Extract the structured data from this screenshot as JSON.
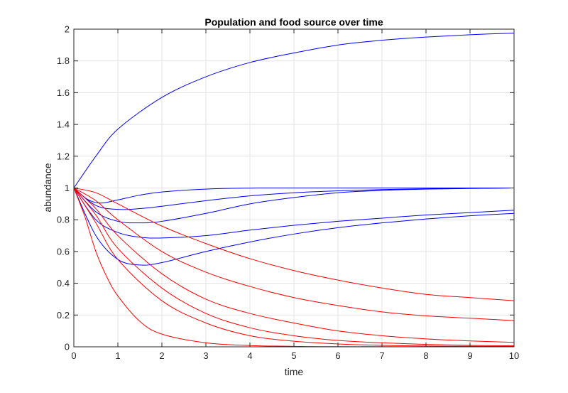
{
  "chart_data": {
    "type": "line",
    "title": "Population and food source over time",
    "xlabel": "time",
    "ylabel": "abundance",
    "xlim": [
      0,
      10
    ],
    "ylim": [
      0,
      2
    ],
    "xticks": [
      "0",
      "1",
      "2",
      "3",
      "4",
      "5",
      "6",
      "7",
      "8",
      "9",
      "10"
    ],
    "yticks": [
      "0",
      "0.2",
      "0.4",
      "0.6",
      "0.8",
      "1",
      "1.2",
      "1.4",
      "1.6",
      "1.8",
      "2"
    ],
    "grid": true,
    "colors": {
      "population": "#0000ff",
      "food": "#ff0000"
    },
    "series": [
      {
        "color": "#0000ff",
        "x": [
          0,
          0.5,
          1,
          2,
          3,
          4,
          5,
          6,
          7,
          8,
          9,
          10
        ],
        "y": [
          1,
          1.2,
          1.37,
          1.57,
          1.7,
          1.79,
          1.85,
          1.9,
          1.93,
          1.95,
          1.965,
          1.975
        ]
      },
      {
        "color": "#0000ff",
        "x": [
          0,
          0.3,
          0.6,
          1,
          1.5,
          2,
          3,
          4,
          5,
          10
        ],
        "y": [
          1,
          0.93,
          0.905,
          0.925,
          0.955,
          0.975,
          0.993,
          0.999,
          1,
          1
        ]
      },
      {
        "color": "#0000ff",
        "x": [
          0,
          0.5,
          1,
          1.5,
          2,
          3,
          4,
          5,
          6,
          7,
          8,
          10
        ],
        "y": [
          1,
          0.89,
          0.865,
          0.87,
          0.885,
          0.92,
          0.95,
          0.97,
          0.982,
          0.99,
          0.995,
          1
        ]
      },
      {
        "color": "#0000ff",
        "x": [
          0,
          0.5,
          1,
          1.5,
          2,
          3,
          4,
          5,
          6,
          7,
          8,
          10
        ],
        "y": [
          1,
          0.85,
          0.79,
          0.78,
          0.79,
          0.84,
          0.9,
          0.94,
          0.97,
          0.985,
          0.993,
          1
        ]
      },
      {
        "color": "#0000ff",
        "x": [
          0,
          0.5,
          1,
          1.5,
          2,
          3,
          4,
          5,
          6,
          7,
          8,
          9,
          10
        ],
        "y": [
          1,
          0.8,
          0.72,
          0.69,
          0.685,
          0.7,
          0.735,
          0.765,
          0.79,
          0.81,
          0.83,
          0.845,
          0.86
        ]
      },
      {
        "color": "#0000ff",
        "x": [
          0,
          0.5,
          1,
          1.5,
          2,
          3,
          4,
          5,
          6,
          7,
          8,
          9,
          10
        ],
        "y": [
          1,
          0.7,
          0.55,
          0.515,
          0.53,
          0.6,
          0.66,
          0.71,
          0.75,
          0.78,
          0.805,
          0.825,
          0.84
        ]
      },
      {
        "color": "#ff0000",
        "x": [
          0,
          0.5,
          1,
          2,
          3,
          4,
          5,
          6,
          7,
          8,
          9,
          10
        ],
        "y": [
          1,
          0.97,
          0.9,
          0.76,
          0.65,
          0.555,
          0.48,
          0.42,
          0.37,
          0.33,
          0.31,
          0.29
        ]
      },
      {
        "color": "#ff0000",
        "x": [
          0,
          0.5,
          1,
          2,
          3,
          4,
          5,
          6,
          7,
          8,
          9,
          10
        ],
        "y": [
          1,
          0.92,
          0.8,
          0.6,
          0.47,
          0.38,
          0.31,
          0.26,
          0.22,
          0.195,
          0.18,
          0.165
        ]
      },
      {
        "color": "#ff0000",
        "x": [
          0,
          0.5,
          1,
          2,
          3,
          4,
          5,
          6,
          7,
          8,
          9,
          10
        ],
        "y": [
          1,
          0.87,
          0.7,
          0.46,
          0.3,
          0.21,
          0.15,
          0.1,
          0.07,
          0.05,
          0.037,
          0.028
        ]
      },
      {
        "color": "#ff0000",
        "x": [
          0,
          0.5,
          1,
          2,
          3,
          4,
          5,
          6,
          7,
          8,
          9,
          10
        ],
        "y": [
          1,
          0.83,
          0.62,
          0.37,
          0.21,
          0.12,
          0.07,
          0.04,
          0.025,
          0.015,
          0.009,
          0.006
        ]
      },
      {
        "color": "#ff0000",
        "x": [
          0,
          0.5,
          1,
          2,
          3,
          4,
          5,
          6,
          7,
          8,
          10
        ],
        "y": [
          1,
          0.78,
          0.55,
          0.29,
          0.15,
          0.07,
          0.035,
          0.018,
          0.009,
          0.005,
          0.002
        ]
      },
      {
        "color": "#ff0000",
        "x": [
          0,
          0.25,
          0.5,
          0.75,
          1,
          1.5,
          2,
          3,
          4,
          5,
          6,
          10
        ],
        "y": [
          1,
          0.82,
          0.6,
          0.44,
          0.32,
          0.16,
          0.08,
          0.025,
          0.008,
          0.003,
          0.001,
          0
        ]
      }
    ]
  }
}
